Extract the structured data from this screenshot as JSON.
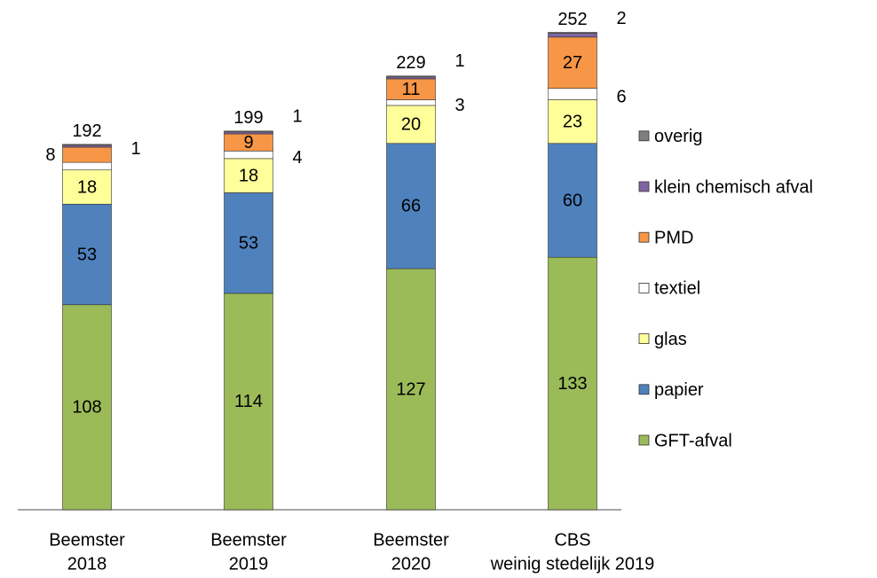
{
  "chart_data": {
    "type": "stacked-bar",
    "categories": [
      [
        "Beemster",
        "2018"
      ],
      [
        "Beemster",
        "2019"
      ],
      [
        "Beemster",
        "2020"
      ],
      [
        "CBS",
        "weinig stedelijk 2019"
      ]
    ],
    "totals": [
      192,
      199,
      229,
      252
    ],
    "ylim": [
      0,
      255
    ],
    "series": [
      {
        "name": "GFT-afval",
        "color": "#9bbb59",
        "values": [
          108,
          114,
          127,
          133
        ],
        "value_labels": [
          "108",
          "114",
          "127",
          "133"
        ]
      },
      {
        "name": "papier",
        "color": "#4f81bd",
        "values": [
          53,
          53,
          66,
          60
        ],
        "value_labels": [
          "53",
          "53",
          "66",
          "60"
        ]
      },
      {
        "name": "glas",
        "color": "#ffff99",
        "values": [
          18,
          18,
          20,
          23
        ],
        "value_labels": [
          "18",
          "18",
          "20",
          "23"
        ]
      },
      {
        "name": "textiel",
        "color": "#ffffff",
        "values": [
          4,
          4,
          3,
          6
        ],
        "value_labels": [
          null,
          "4",
          "3",
          "6"
        ]
      },
      {
        "name": "PMD",
        "color": "#f79646",
        "values": [
          8,
          9,
          11,
          27
        ],
        "value_labels": [
          "8",
          "9",
          "11",
          "27"
        ]
      },
      {
        "name": "klein chemisch afval",
        "color": "#8064a2",
        "values": [
          1,
          1,
          1,
          2
        ],
        "value_labels": [
          "1",
          "1",
          "1",
          "2"
        ]
      },
      {
        "name": "overig",
        "color": "#7f7f7f",
        "values": [
          0.5,
          0.5,
          0.5,
          0.5
        ],
        "value_labels": [
          null,
          null,
          null,
          null
        ]
      }
    ]
  }
}
